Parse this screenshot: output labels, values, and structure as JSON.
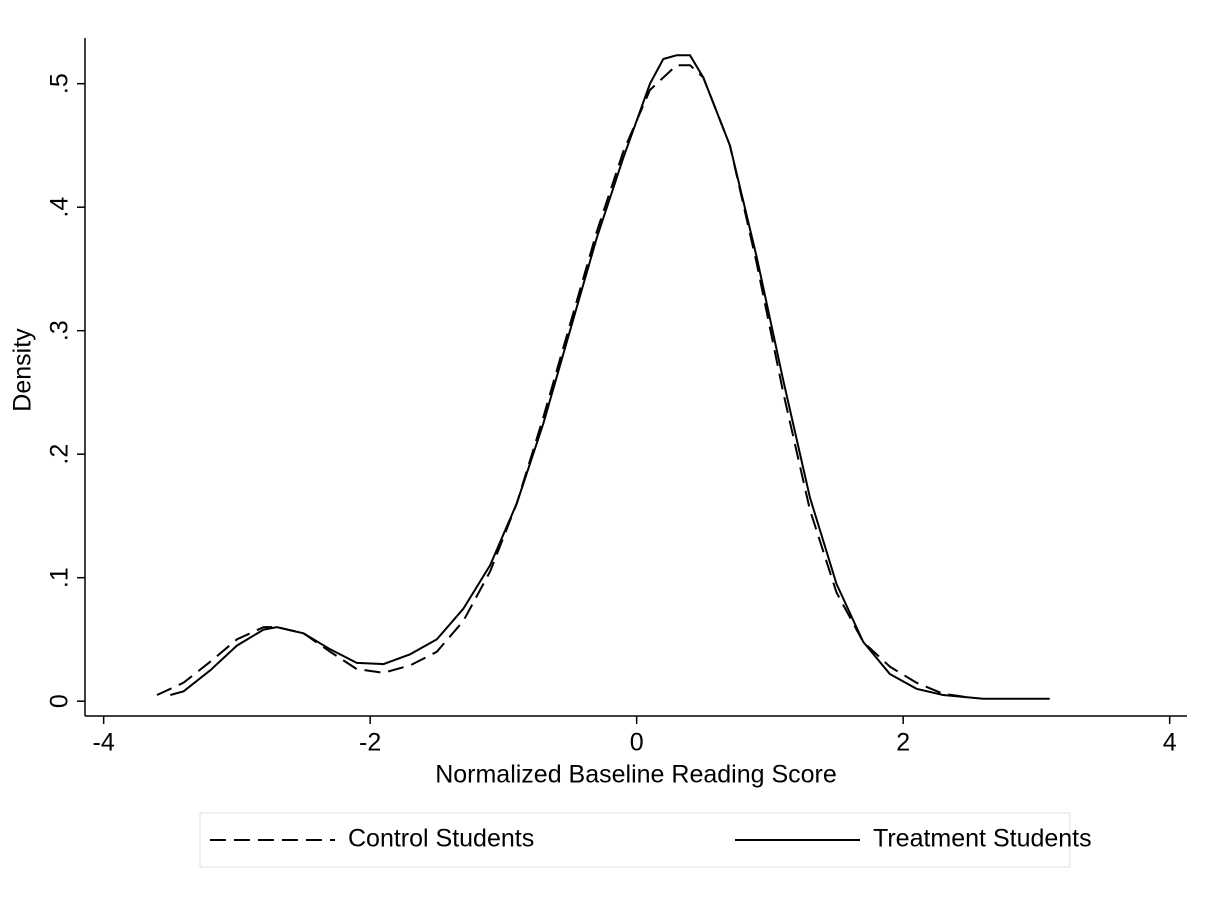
{
  "chart_data": {
    "type": "line",
    "x_label": "Normalized Baseline Reading Score",
    "y_label": "Density",
    "xlim": [
      -4.14,
      4.13
    ],
    "xticks": [
      -4,
      -2,
      0,
      2,
      4
    ],
    "ylim": [
      -0.012,
      0.537
    ],
    "yticks": [
      0,
      {
        "value": 0.1,
        "label": ".1"
      },
      {
        "value": 0.2,
        "label": ".2"
      },
      {
        "value": 0.3,
        "label": ".3"
      },
      {
        "value": 0.4,
        "label": ".4"
      },
      {
        "value": 0.5,
        "label": ".5"
      }
    ],
    "grid": false,
    "legend": "bottom",
    "series": [
      {
        "name": "Control Students",
        "color": "#000000",
        "dashed": true,
        "x": [
          -3.6,
          -3.4,
          -3.2,
          -3.0,
          -2.8,
          -2.7,
          -2.5,
          -2.3,
          -2.1,
          -1.9,
          -1.7,
          -1.5,
          -1.3,
          -1.1,
          -0.9,
          -0.7,
          -0.5,
          -0.3,
          -0.1,
          0.1,
          0.3,
          0.4,
          0.5,
          0.7,
          0.9,
          1.1,
          1.3,
          1.5,
          1.7,
          1.9,
          2.1,
          2.3,
          2.5
        ],
        "values": [
          0.005,
          0.015,
          0.032,
          0.05,
          0.06,
          0.06,
          0.055,
          0.04,
          0.026,
          0.023,
          0.029,
          0.04,
          0.065,
          0.105,
          0.16,
          0.23,
          0.305,
          0.38,
          0.445,
          0.495,
          0.515,
          0.515,
          0.505,
          0.45,
          0.355,
          0.25,
          0.155,
          0.088,
          0.048,
          0.028,
          0.015,
          0.006,
          0.003
        ]
      },
      {
        "name": "Treatment Students",
        "color": "#000000",
        "dashed": false,
        "x": [
          -3.5,
          -3.4,
          -3.2,
          -3.0,
          -2.8,
          -2.7,
          -2.5,
          -2.3,
          -2.1,
          -1.9,
          -1.7,
          -1.5,
          -1.3,
          -1.1,
          -0.9,
          -0.7,
          -0.5,
          -0.3,
          -0.1,
          0.1,
          0.2,
          0.3,
          0.4,
          0.5,
          0.7,
          0.9,
          1.1,
          1.3,
          1.5,
          1.7,
          1.9,
          2.1,
          2.3,
          2.6,
          3.1
        ],
        "values": [
          0.005,
          0.008,
          0.025,
          0.045,
          0.058,
          0.06,
          0.055,
          0.042,
          0.031,
          0.03,
          0.038,
          0.05,
          0.075,
          0.11,
          0.16,
          0.225,
          0.3,
          0.375,
          0.44,
          0.5,
          0.52,
          0.523,
          0.523,
          0.505,
          0.45,
          0.36,
          0.26,
          0.165,
          0.095,
          0.048,
          0.022,
          0.01,
          0.005,
          0.002,
          0.002
        ]
      }
    ]
  }
}
